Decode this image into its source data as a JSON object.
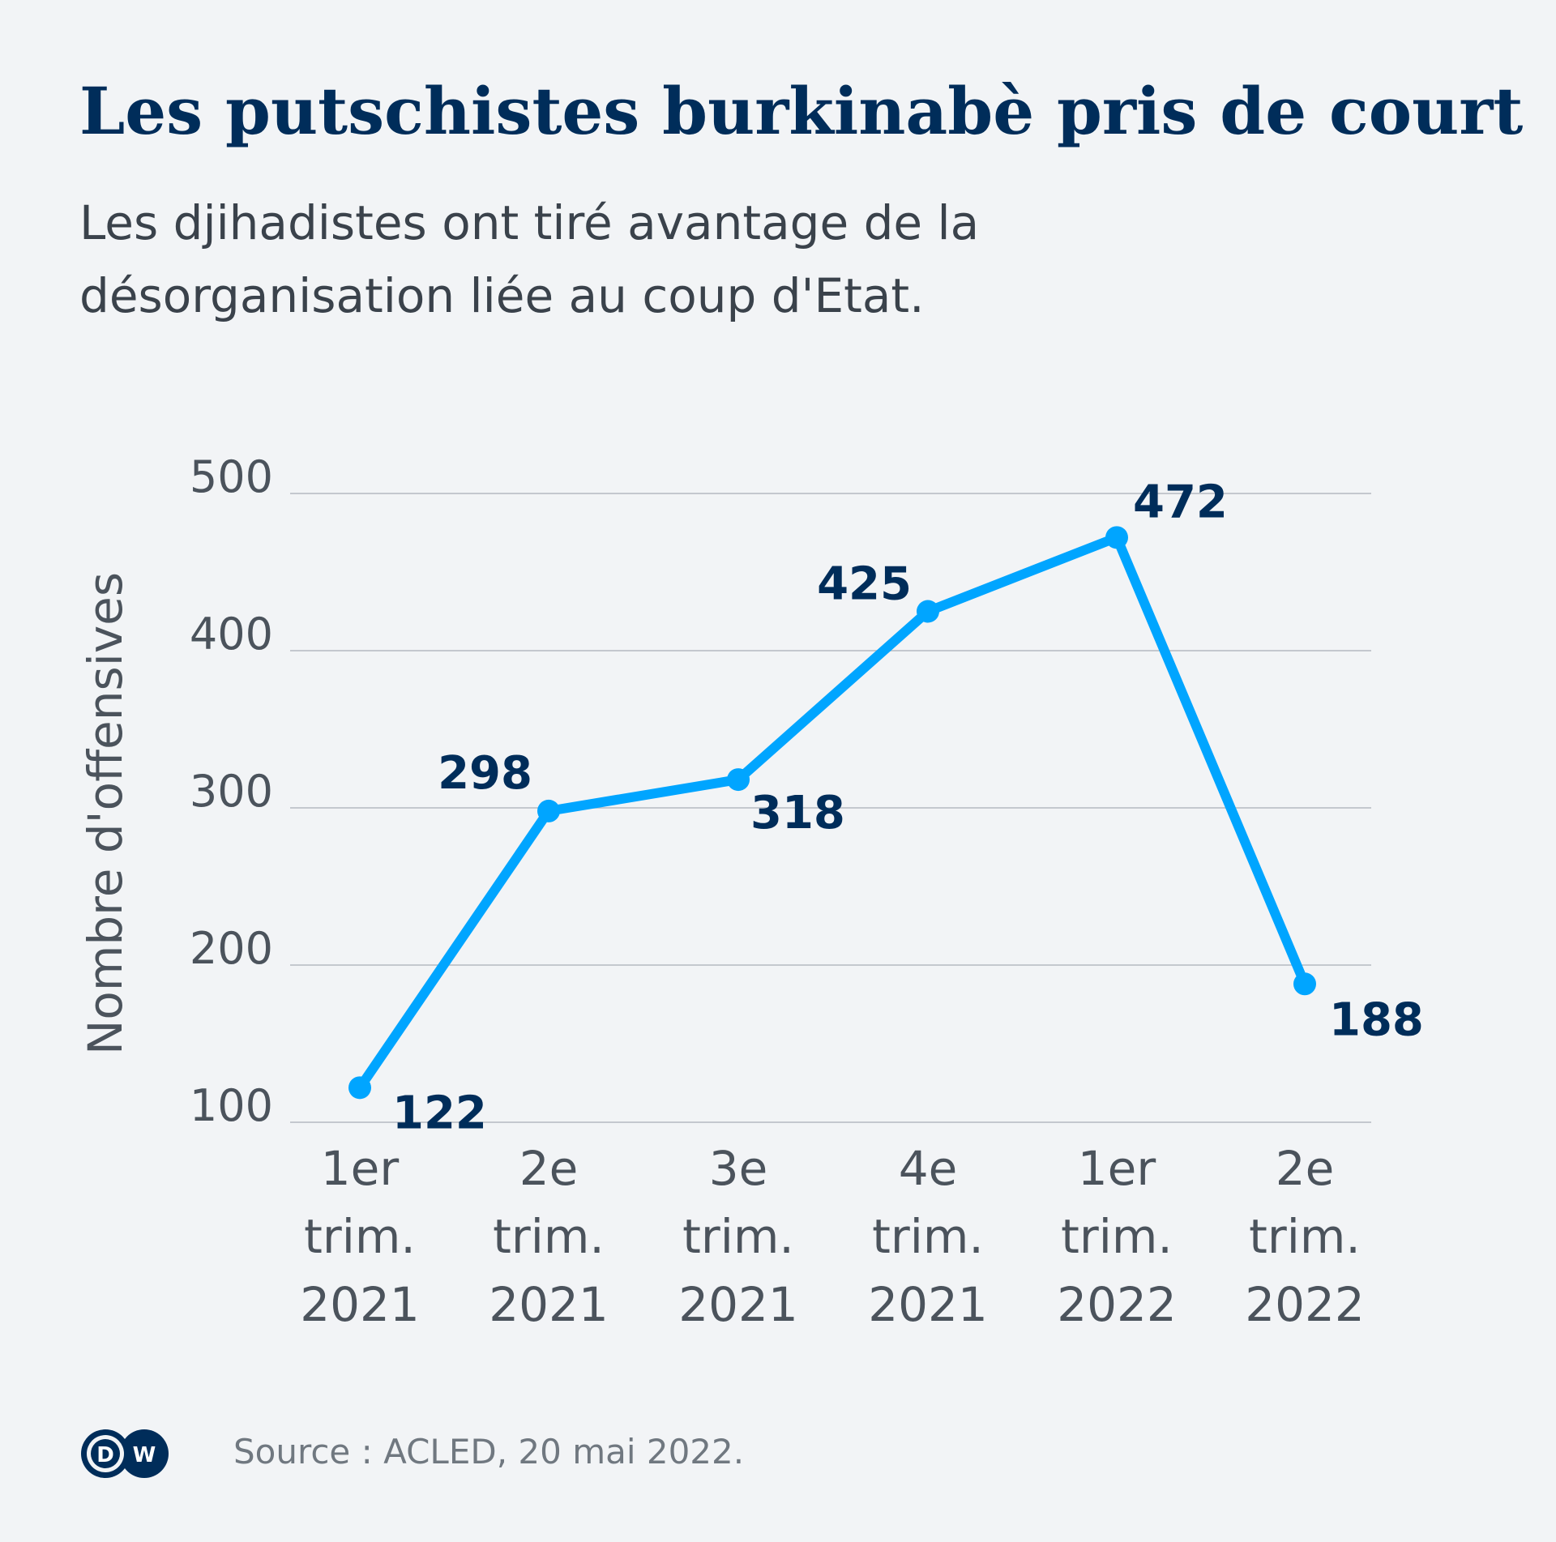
{
  "chart_data": {
    "type": "line",
    "title": "Les putschistes burkinabè pris de court",
    "subtitle": [
      "Les djihadistes ont tiré avantage de la",
      "désorganisation liée au coup d'Etat."
    ],
    "ylabel": "Nombre d'offensives",
    "xlabel": "",
    "categories": [
      [
        "1er",
        "trim.",
        "2021"
      ],
      [
        "2e",
        "trim.",
        "2021"
      ],
      [
        "3e",
        "trim.",
        "2021"
      ],
      [
        "4e",
        "trim.",
        "2021"
      ],
      [
        "1er",
        "trim.",
        "2022"
      ],
      [
        "2e",
        "trim.",
        "2022"
      ]
    ],
    "values": [
      122,
      298,
      318,
      425,
      472,
      188
    ],
    "ylim": [
      100,
      500
    ],
    "yticks": [
      100,
      200,
      300,
      400,
      500
    ],
    "grid": true,
    "line_color": "#00a5ff",
    "label_color": "#002d5a"
  },
  "source": "Source : ACLED, 20 mai 2022.",
  "logo": "DW"
}
